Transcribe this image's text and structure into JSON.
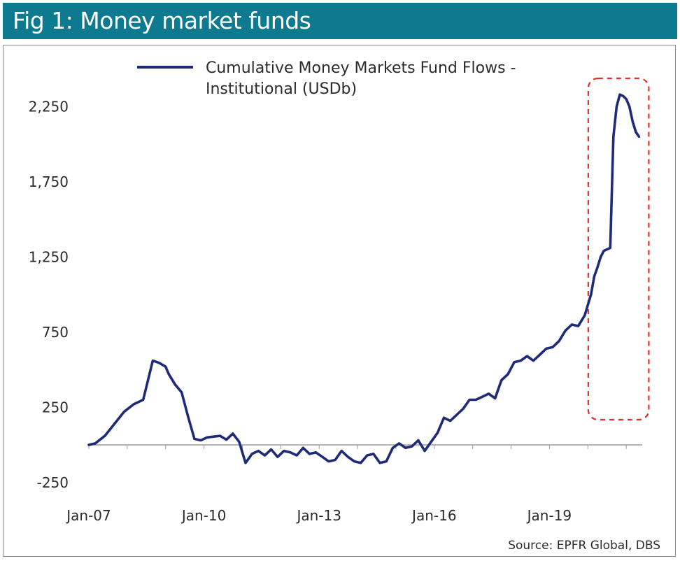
{
  "header": {
    "title": "Fig 1: Money market funds"
  },
  "source": "Source: EPFR Global, DBS",
  "colors": {
    "header_bg": "#0e7a8f",
    "line": "#1f2a78",
    "highlight_box": "#e0312b"
  },
  "chart_data": {
    "type": "line",
    "title": "",
    "xlabel": "",
    "ylabel": "",
    "x_ticks": [
      "Jan-07",
      "Jan-10",
      "Jan-13",
      "Jan-16",
      "Jan-19"
    ],
    "y_ticks": [
      "2,250",
      "1,750",
      "1,250",
      "750",
      "250",
      "-250"
    ],
    "y_tick_values": [
      2250,
      1750,
      1250,
      750,
      250,
      -250
    ],
    "ylim": [
      -250,
      2450
    ],
    "xlim": [
      "2007-01",
      "2021-06"
    ],
    "grid": false,
    "legend_position": "top-left",
    "highlight": {
      "from": "2020-02",
      "to": "2021-05",
      "style": "dashed-box"
    },
    "series": [
      {
        "name": "Cumulative Money Markets Fund Flows - Institutional (USDb)",
        "x": [
          "2007-01",
          "2007-03",
          "2007-06",
          "2007-09",
          "2007-12",
          "2008-03",
          "2008-06",
          "2008-09",
          "2008-11",
          "2009-01",
          "2009-02",
          "2009-04",
          "2009-06",
          "2009-08",
          "2009-10",
          "2009-12",
          "2010-02",
          "2010-04",
          "2010-06",
          "2010-08",
          "2010-10",
          "2010-12",
          "2011-02",
          "2011-04",
          "2011-06",
          "2011-08",
          "2011-10",
          "2011-12",
          "2012-02",
          "2012-04",
          "2012-06",
          "2012-08",
          "2012-10",
          "2012-12",
          "2013-02",
          "2013-04",
          "2013-06",
          "2013-08",
          "2013-10",
          "2013-12",
          "2014-02",
          "2014-04",
          "2014-06",
          "2014-08",
          "2014-10",
          "2014-12",
          "2015-02",
          "2015-04",
          "2015-06",
          "2015-08",
          "2015-10",
          "2015-12",
          "2016-02",
          "2016-04",
          "2016-06",
          "2016-08",
          "2016-10",
          "2016-12",
          "2017-02",
          "2017-04",
          "2017-06",
          "2017-08",
          "2017-10",
          "2017-12",
          "2018-02",
          "2018-04",
          "2018-06",
          "2018-08",
          "2018-10",
          "2018-12",
          "2019-02",
          "2019-04",
          "2019-06",
          "2019-08",
          "2019-10",
          "2019-12",
          "2020-02",
          "2020-03",
          "2020-04",
          "2020-05",
          "2020-06",
          "2020-07",
          "2020-08",
          "2020-09",
          "2020-10",
          "2020-11",
          "2020-12",
          "2021-01",
          "2021-02",
          "2021-03",
          "2021-04",
          "2021-05"
        ],
        "values": [
          0,
          10,
          60,
          140,
          220,
          270,
          300,
          560,
          545,
          520,
          470,
          400,
          350,
          190,
          40,
          30,
          50,
          55,
          60,
          35,
          75,
          20,
          -120,
          -60,
          -40,
          -70,
          -30,
          -80,
          -40,
          -50,
          -70,
          -20,
          -60,
          -50,
          -80,
          -110,
          -100,
          -40,
          -80,
          -110,
          -120,
          -70,
          -60,
          -120,
          -110,
          -20,
          10,
          -20,
          -10,
          30,
          -40,
          20,
          80,
          180,
          160,
          200,
          240,
          300,
          300,
          320,
          340,
          310,
          430,
          470,
          550,
          560,
          590,
          560,
          600,
          640,
          650,
          690,
          760,
          800,
          790,
          860,
          1000,
          1120,
          1180,
          1250,
          1290,
          1300,
          1310,
          2050,
          2250,
          2330,
          2320,
          2300,
          2250,
          2150,
          2080,
          2050
        ]
      }
    ]
  }
}
